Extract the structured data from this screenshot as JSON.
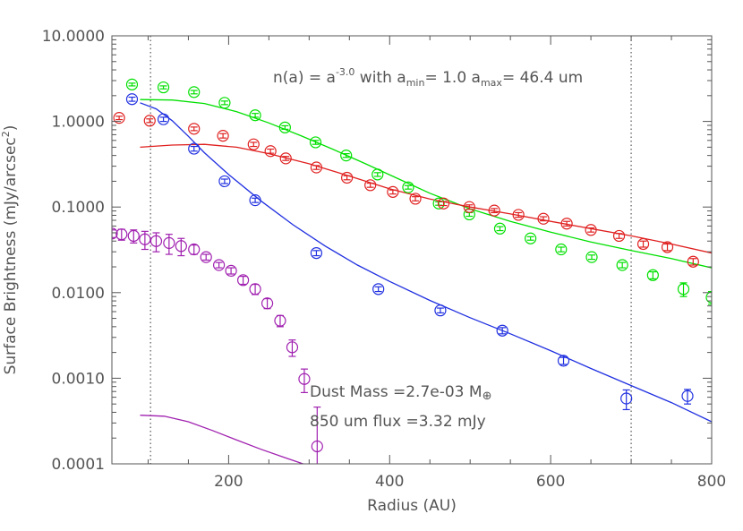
{
  "chart_data": {
    "type": "scatter",
    "xlabel": "Radius (AU)",
    "ylabel_main": "Surface Brightness (mJy/arcsec",
    "ylabel_sup": "2",
    "ylabel_end": ")",
    "xlim": [
      55,
      800
    ],
    "ylim": [
      0.0001,
      10
    ],
    "yscale": "log",
    "x_ticks": [
      "200",
      "400",
      "600",
      "800"
    ],
    "x_tick_values": [
      200,
      400,
      600,
      800
    ],
    "y_ticks": [
      "10.0000",
      "1.0000",
      "0.1000",
      "0.0100",
      "0.0010",
      "0.0001"
    ],
    "y_tick_values": [
      10,
      1,
      0.1,
      0.01,
      0.001,
      0.0001
    ],
    "vlines": [
      103,
      700
    ],
    "annotation": {
      "pre": "n(a) = a",
      "exp": "-3.0",
      "mid": " with a",
      "sub1": "min",
      "mid2": "= 1.0 a",
      "sub2": "max",
      "post": "= 46.4 um"
    },
    "dust_mass_label": "Dust Mass =2.7e-03 M",
    "earth_symbol": "⊕",
    "flux_label": "850 um flux =3.32 mJy",
    "series": [
      {
        "color": "#00e000",
        "points": [
          [
            80,
            2.7,
            0.1
          ],
          [
            119,
            2.5,
            0.1
          ],
          [
            157,
            2.2,
            0.1
          ],
          [
            195,
            1.65,
            0.08
          ],
          [
            233,
            1.18,
            0.06
          ],
          [
            270,
            0.85,
            0.04
          ],
          [
            308,
            0.57,
            0.03
          ],
          [
            346,
            0.4,
            0.02
          ],
          [
            385,
            0.24,
            0.012
          ],
          [
            423,
            0.17,
            0.008
          ],
          [
            461,
            0.11,
            0.005
          ],
          [
            499,
            0.082,
            0.004
          ],
          [
            537,
            0.056,
            0.003
          ],
          [
            575,
            0.043,
            0.002
          ],
          [
            613,
            0.032,
            0.002
          ],
          [
            651,
            0.026,
            0.0015
          ],
          [
            689,
            0.021,
            0.0015
          ],
          [
            727,
            0.016,
            0.0015
          ],
          [
            765,
            0.011,
            0.002
          ],
          [
            800,
            0.0088,
            0.0015
          ]
        ],
        "model": [
          [
            90,
            1.8
          ],
          [
            130,
            1.78
          ],
          [
            170,
            1.62
          ],
          [
            210,
            1.3
          ],
          [
            250,
            0.96
          ],
          [
            290,
            0.68
          ],
          [
            330,
            0.47
          ],
          [
            370,
            0.32
          ],
          [
            410,
            0.215
          ],
          [
            450,
            0.145
          ],
          [
            500,
            0.095
          ],
          [
            550,
            0.068
          ],
          [
            600,
            0.051
          ],
          [
            650,
            0.039
          ],
          [
            700,
            0.031
          ],
          [
            750,
            0.025
          ],
          [
            800,
            0.0195
          ]
        ]
      },
      {
        "color": "#e02020",
        "points": [
          [
            64,
            1.1,
            0.05
          ],
          [
            102,
            1.02,
            0.05
          ],
          [
            157,
            0.82,
            0.04
          ],
          [
            193,
            0.68,
            0.04
          ],
          [
            231,
            0.54,
            0.03
          ],
          [
            252,
            0.45,
            0.025
          ],
          [
            271,
            0.37,
            0.02
          ],
          [
            309,
            0.29,
            0.015
          ],
          [
            347,
            0.22,
            0.012
          ],
          [
            376,
            0.18,
            0.01
          ],
          [
            404,
            0.15,
            0.008
          ],
          [
            432,
            0.125,
            0.007
          ],
          [
            467,
            0.11,
            0.006
          ],
          [
            499,
            0.1,
            0.006
          ],
          [
            530,
            0.091,
            0.005
          ],
          [
            560,
            0.081,
            0.005
          ],
          [
            591,
            0.073,
            0.004
          ],
          [
            620,
            0.064,
            0.004
          ],
          [
            650,
            0.054,
            0.003
          ],
          [
            685,
            0.046,
            0.003
          ],
          [
            715,
            0.037,
            0.003
          ],
          [
            745,
            0.034,
            0.003
          ],
          [
            777,
            0.023,
            0.002
          ]
        ],
        "model": [
          [
            90,
            0.5
          ],
          [
            130,
            0.53
          ],
          [
            170,
            0.54
          ],
          [
            210,
            0.5
          ],
          [
            250,
            0.42
          ],
          [
            300,
            0.32
          ],
          [
            350,
            0.23
          ],
          [
            400,
            0.163
          ],
          [
            450,
            0.124
          ],
          [
            500,
            0.1
          ],
          [
            550,
            0.083
          ],
          [
            600,
            0.068
          ],
          [
            650,
            0.056
          ],
          [
            700,
            0.046
          ],
          [
            750,
            0.037
          ],
          [
            800,
            0.029
          ]
        ]
      },
      {
        "color": "#2030e0",
        "points": [
          [
            80,
            1.82,
            0.1
          ],
          [
            119,
            1.06,
            0.06
          ],
          [
            157,
            0.48,
            0.03
          ],
          [
            195,
            0.2,
            0.012
          ],
          [
            233,
            0.12,
            0.007
          ],
          [
            309,
            0.029,
            0.002
          ],
          [
            386,
            0.011,
            0.0007
          ],
          [
            463,
            0.0062,
            0.0004
          ],
          [
            540,
            0.0036,
            0.0003
          ],
          [
            616,
            0.0016,
            0.00015
          ],
          [
            694,
            0.00058,
            0.00015
          ],
          [
            770,
            0.00062,
            0.00012
          ]
        ],
        "model": [
          [
            90,
            1.65
          ],
          [
            110,
            1.4
          ],
          [
            130,
            1.02
          ],
          [
            150,
            0.67
          ],
          [
            170,
            0.43
          ],
          [
            200,
            0.24
          ],
          [
            240,
            0.118
          ],
          [
            280,
            0.062
          ],
          [
            320,
            0.035
          ],
          [
            360,
            0.021
          ],
          [
            400,
            0.0135
          ],
          [
            450,
            0.0081
          ],
          [
            500,
            0.0051
          ],
          [
            550,
            0.0033
          ],
          [
            600,
            0.0021
          ],
          [
            650,
            0.0013
          ],
          [
            700,
            0.00082
          ],
          [
            750,
            0.00052
          ],
          [
            800,
            0.00031
          ]
        ]
      },
      {
        "color": "#a020b0",
        "points": [
          [
            55,
            0.049,
            0.005
          ],
          [
            67,
            0.048,
            0.007
          ],
          [
            82,
            0.046,
            0.008
          ],
          [
            96,
            0.042,
            0.01
          ],
          [
            110,
            0.04,
            0.01
          ],
          [
            126,
            0.038,
            0.01
          ],
          [
            141,
            0.035,
            0.008
          ],
          [
            157,
            0.032,
            0.004
          ],
          [
            172,
            0.026,
            0.002
          ],
          [
            188,
            0.021,
            0.0015
          ],
          [
            203,
            0.018,
            0.0015
          ],
          [
            218,
            0.014,
            0.0015
          ],
          [
            233,
            0.011,
            0.0015
          ],
          [
            248,
            0.0075,
            0.001
          ],
          [
            264,
            0.0047,
            0.0007
          ],
          [
            279,
            0.0023,
            0.0005
          ],
          [
            294,
            0.00098,
            0.0003
          ],
          [
            310,
            0.00016,
            0.0003
          ]
        ],
        "model": [
          [
            90,
            0.00037
          ],
          [
            120,
            0.00036
          ],
          [
            150,
            0.00031
          ],
          [
            180,
            0.000245
          ],
          [
            210,
            0.00019
          ],
          [
            240,
            0.000148
          ],
          [
            270,
            0.000118
          ],
          [
            300,
            9.45e-05
          ],
          [
            320,
            8.3e-05
          ]
        ]
      }
    ]
  }
}
